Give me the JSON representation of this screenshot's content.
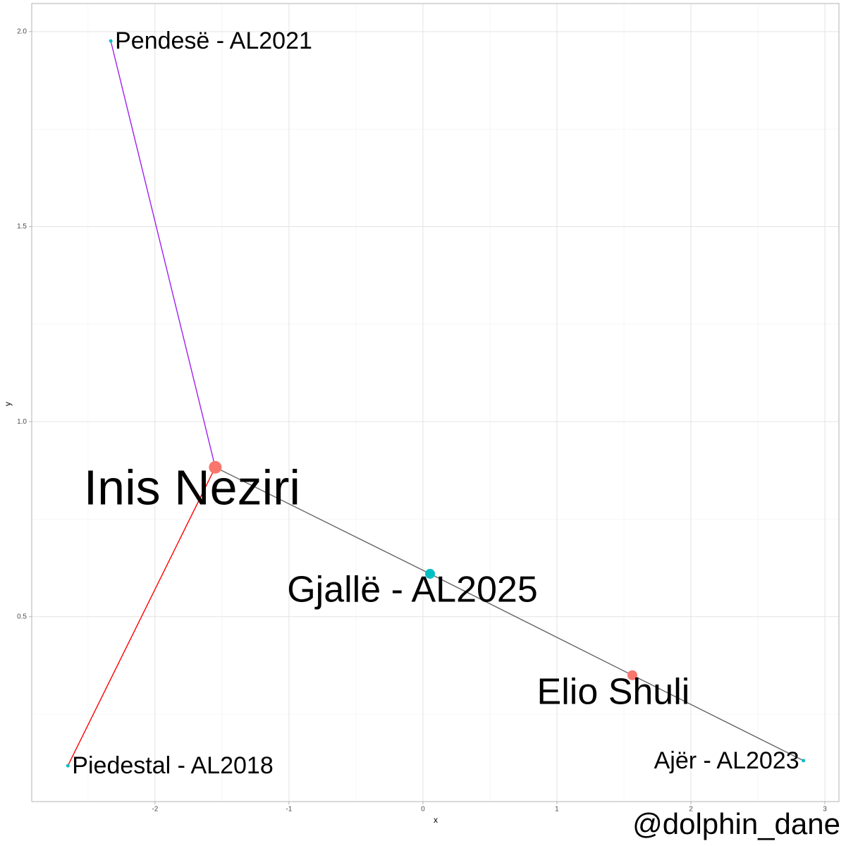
{
  "chart_data": {
    "type": "network",
    "x_label": "x",
    "y_label": "y",
    "watermark": "@dolphin_dane",
    "xlim": [
      -2.92,
      3.105
    ],
    "ylim": [
      0.026,
      2.072
    ],
    "xticks": [
      -2,
      -1,
      0,
      1,
      2,
      3
    ],
    "yticks": [
      0.5,
      1.0,
      1.5,
      2.0
    ],
    "grid": true,
    "nodes": [
      {
        "label": "Pendesë - AL2021",
        "x": -2.33,
        "y": 1.976,
        "size": 2.5,
        "color": "#00BFC4"
      },
      {
        "label": "Inis Neziri",
        "x": -1.55,
        "y": 0.883,
        "size": 9,
        "color": "#F8766D"
      },
      {
        "label": "Piedestal - AL2018",
        "x": -2.65,
        "y": 0.118,
        "size": 2.5,
        "color": "#00BFC4"
      },
      {
        "label": "Gjallë - AL2025",
        "x": 0.053,
        "y": 0.61,
        "size": 7,
        "color": "#00BFC4"
      },
      {
        "label": "Elio Shuli",
        "x": 1.563,
        "y": 0.35,
        "size": 7,
        "color": "#F8766D"
      },
      {
        "label": "Ajër - AL2023",
        "x": 2.84,
        "y": 0.131,
        "size": 2.5,
        "color": "#00BFC4"
      }
    ],
    "edges": [
      {
        "from": 0,
        "to": 1,
        "color": "#A020F0"
      },
      {
        "from": 2,
        "to": 1,
        "color": "#FF0000"
      },
      {
        "from": 1,
        "to": 3,
        "color": "#666666"
      },
      {
        "from": 3,
        "to": 4,
        "color": "#666666"
      },
      {
        "from": 4,
        "to": 5,
        "color": "#666666"
      }
    ]
  }
}
